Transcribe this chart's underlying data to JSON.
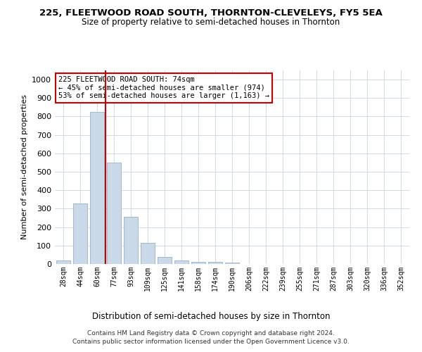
{
  "title1": "225, FLEETWOOD ROAD SOUTH, THORNTON-CLEVELEYS, FY5 5EA",
  "title2": "Size of property relative to semi-detached houses in Thornton",
  "xlabel": "Distribution of semi-detached houses by size in Thornton",
  "ylabel": "Number of semi-detached properties",
  "categories": [
    "28sqm",
    "44sqm",
    "60sqm",
    "77sqm",
    "93sqm",
    "109sqm",
    "125sqm",
    "141sqm",
    "158sqm",
    "174sqm",
    "190sqm",
    "206sqm",
    "222sqm",
    "239sqm",
    "255sqm",
    "271sqm",
    "287sqm",
    "303sqm",
    "320sqm",
    "336sqm",
    "352sqm"
  ],
  "values": [
    18,
    330,
    825,
    550,
    255,
    115,
    40,
    18,
    10,
    10,
    8,
    0,
    0,
    0,
    0,
    0,
    0,
    0,
    0,
    0,
    0
  ],
  "bar_color": "#c9d9e8",
  "bar_edge_color": "#a0b8cc",
  "highlight_line_color": "#cc0000",
  "annotation_text": "225 FLEETWOOD ROAD SOUTH: 74sqm\n← 45% of semi-detached houses are smaller (974)\n53% of semi-detached houses are larger (1,163) →",
  "annotation_box_edge_color": "#cc0000",
  "footer1": "Contains HM Land Registry data © Crown copyright and database right 2024.",
  "footer2": "Contains public sector information licensed under the Open Government Licence v3.0.",
  "ylim": [
    0,
    1050
  ],
  "yticks": [
    0,
    100,
    200,
    300,
    400,
    500,
    600,
    700,
    800,
    900,
    1000
  ],
  "fig_width": 6.0,
  "fig_height": 5.0,
  "background_color": "#ffffff"
}
